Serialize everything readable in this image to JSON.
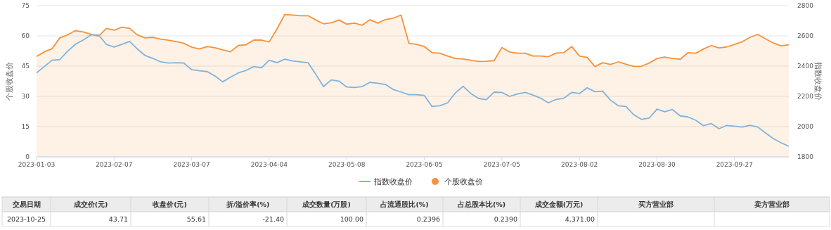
{
  "chart_data": [
    {
      "type": "line",
      "ylabel": "个股收盘价",
      "y2label": "指数收盘价",
      "categories": [
        "2023-01-03",
        null,
        null,
        null,
        null,
        null,
        null,
        null,
        null,
        null,
        "2023-02-07",
        null,
        null,
        null,
        null,
        null,
        null,
        null,
        null,
        null,
        "2023-03-07",
        null,
        null,
        null,
        null,
        null,
        null,
        null,
        null,
        null,
        "2023-04-04",
        null,
        null,
        null,
        null,
        null,
        null,
        null,
        null,
        null,
        "2023-05-08",
        null,
        null,
        null,
        null,
        null,
        null,
        null,
        null,
        null,
        "2023-06-05",
        null,
        null,
        null,
        null,
        null,
        null,
        null,
        null,
        null,
        "2023-07-05",
        null,
        null,
        null,
        null,
        null,
        null,
        null,
        null,
        null,
        "2023-08-02",
        null,
        null,
        null,
        null,
        null,
        null,
        null,
        null,
        null,
        "2023-08-30",
        null,
        null,
        null,
        null,
        null,
        null,
        null,
        null,
        null,
        "2023-09-27",
        null,
        null,
        null,
        null,
        null,
        null,
        null
      ],
      "series": [
        {
          "name": "指数收盘价",
          "color": "#7fb3dc",
          "axis": "y2",
          "values": [
            2355,
            2397,
            2439,
            2443,
            2498,
            2544,
            2572,
            2606,
            2606,
            2544,
            2526,
            2544,
            2563,
            2513,
            2470,
            2451,
            2428,
            2420,
            2423,
            2420,
            2377,
            2369,
            2364,
            2335,
            2296,
            2327,
            2355,
            2371,
            2397,
            2389,
            2439,
            2423,
            2446,
            2434,
            2428,
            2423,
            2346,
            2265,
            2309,
            2301,
            2262,
            2259,
            2265,
            2293,
            2287,
            2278,
            2245,
            2229,
            2211,
            2211,
            2206,
            2133,
            2138,
            2157,
            2222,
            2267,
            2219,
            2186,
            2178,
            2228,
            2226,
            2200,
            2216,
            2226,
            2209,
            2188,
            2157,
            2180,
            2188,
            2226,
            2219,
            2257,
            2231,
            2234,
            2175,
            2138,
            2133,
            2079,
            2048,
            2056,
            2116,
            2098,
            2113,
            2071,
            2064,
            2042,
            2006,
            2020,
            1986,
            2008,
            2003,
            1997,
            2009,
            1997,
            1958,
            1921,
            1893,
            1870
          ]
        },
        {
          "name": "个股收盘价",
          "color": "#f8913a",
          "type": "area",
          "values": [
            49.8,
            52.1,
            53.6,
            59.0,
            60.5,
            62.6,
            62.0,
            60.8,
            59.9,
            63.7,
            62.8,
            64.3,
            63.7,
            60.5,
            59.0,
            59.3,
            58.4,
            57.9,
            57.2,
            56.3,
            54.4,
            53.5,
            54.7,
            54.1,
            53.1,
            52.1,
            55.2,
            55.6,
            57.9,
            57.9,
            57.0,
            63.4,
            70.6,
            70.3,
            70.0,
            70.0,
            67.9,
            66.0,
            66.5,
            67.9,
            65.8,
            66.3,
            65.3,
            68.0,
            66.3,
            68.1,
            68.8,
            70.3,
            56.4,
            55.8,
            54.7,
            51.7,
            51.4,
            50.0,
            48.8,
            48.5,
            47.9,
            47.3,
            47.4,
            47.7,
            54.2,
            52.0,
            51.4,
            51.4,
            50.0,
            50.0,
            49.7,
            51.5,
            51.7,
            54.7,
            50.0,
            49.3,
            44.8,
            46.7,
            45.8,
            47.1,
            45.9,
            44.9,
            44.9,
            46.5,
            48.8,
            49.5,
            48.8,
            48.4,
            51.7,
            51.4,
            53.5,
            55.2,
            54.0,
            54.5,
            55.8,
            57.1,
            59.3,
            60.7,
            58.5,
            56.5,
            55.1,
            55.6
          ]
        }
      ],
      "ylim": [
        0,
        75
      ],
      "yticks": [
        0,
        15,
        30,
        45,
        60,
        75
      ],
      "y2lim": [
        1800,
        2800
      ],
      "y2ticks": [
        1800,
        2000,
        2200,
        2400,
        2600,
        2800
      ],
      "grid": "y",
      "legend": "bottom"
    },
    {
      "type": "other",
      "categories": [
        "交易日期",
        "成交价(元)",
        "收盘价(元)",
        "折/溢价率(%)",
        "成交数量(万股)",
        "占流通股比(%)",
        "占总股本比(%)",
        "成交金额(万元)",
        "买方营业部",
        "卖方营业部"
      ],
      "value_labels": [
        "2023-10-25",
        "43.71",
        "55.61",
        "-21.40",
        "100.00",
        "0.2396",
        "0.2390",
        "4,371.00",
        null,
        null
      ]
    }
  ]
}
